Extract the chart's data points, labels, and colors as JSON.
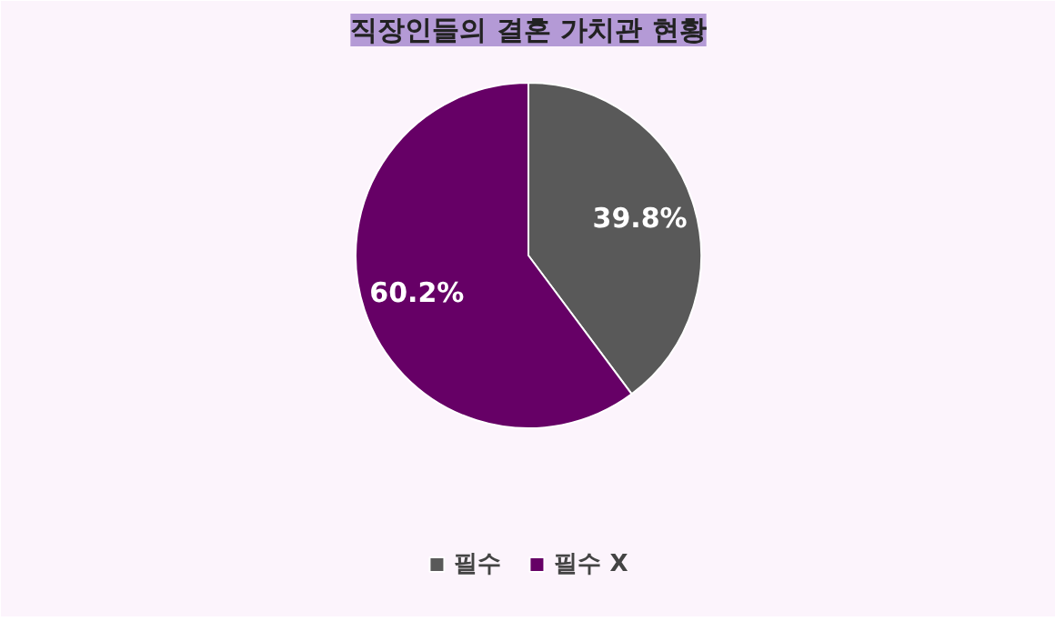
{
  "chart_data": {
    "type": "pie",
    "title": "직장인들의 결혼 가치관 현황",
    "categories": [
      "필수",
      "필수 X"
    ],
    "values": [
      39.8,
      60.2
    ],
    "colors": [
      "#595959",
      "#660066"
    ],
    "value_labels": [
      "39.8%",
      "60.2%"
    ],
    "legend": "bottom"
  }
}
